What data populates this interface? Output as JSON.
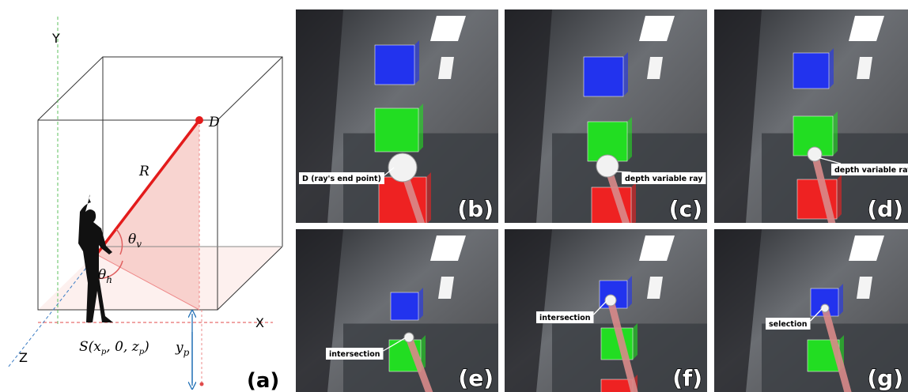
{
  "panel_a": {
    "axis_y": "Y",
    "axis_x": "X",
    "axis_z": "Z",
    "end_point": "D",
    "radius": "R",
    "theta_v": {
      "base": "θ",
      "sub": "v"
    },
    "theta_h": {
      "base": "θ",
      "sub": "h"
    },
    "source": [
      "S(",
      "x",
      "p",
      ", 0, ",
      "z",
      "p",
      ")"
    ],
    "height": {
      "base": "y",
      "sub": "p"
    },
    "letter": "(a)"
  },
  "photos": [
    {
      "letter": "(b)",
      "callout": "D (ray's end point)"
    },
    {
      "letter": "(c)",
      "callout": "depth variable ray"
    },
    {
      "letter": "(d)",
      "callout": "depth variable ray"
    },
    {
      "letter": "(e)",
      "callout": "intersection"
    },
    {
      "letter": "(f)",
      "callout": "intersection"
    },
    {
      "letter": "(g)",
      "callout": "selection"
    }
  ]
}
